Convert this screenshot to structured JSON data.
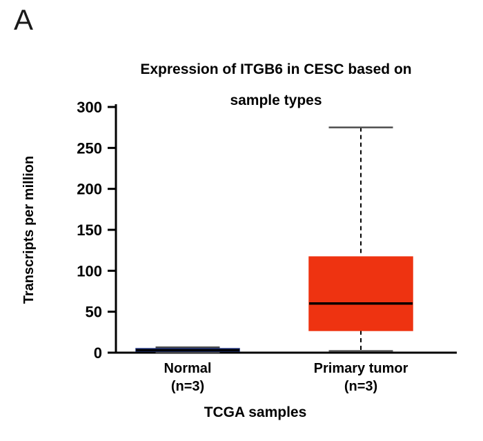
{
  "figure": {
    "panel_label": "A"
  },
  "chart_data": {
    "type": "boxplot",
    "title": "Expression of ITGB6 in CESC based on sample types",
    "title_lines": [
      "Expression of ITGB6 in CESC based on",
      "sample types"
    ],
    "xlabel": "TCGA samples",
    "ylabel": "Transcripts per million",
    "ylim": [
      0,
      300
    ],
    "yticks": [
      0,
      50,
      100,
      150,
      200,
      250,
      300
    ],
    "grid": false,
    "legend": "none",
    "categories": [
      {
        "label_lines": [
          "Normal",
          "(n=3)"
        ]
      },
      {
        "label_lines": [
          "Primary tumor",
          "(n=3)"
        ]
      }
    ],
    "series": [
      {
        "name": "Normal (n=3)",
        "min": 0.5,
        "q1": 1.5,
        "median": 3,
        "q3": 5,
        "max": 6.5,
        "fill": "#3D59C6",
        "edge": "#1b2f7a"
      },
      {
        "name": "Primary tumor (n=3)",
        "min": 2,
        "q1": 27,
        "median": 60,
        "q3": 117,
        "max": 275,
        "fill": "#EE3311",
        "edge": "#EE3311"
      }
    ],
    "colors": {
      "axis": "#000000",
      "whisker": "#000000",
      "whisker_cap": "#4d4d4d",
      "median": "#000000",
      "text": "#000000"
    }
  }
}
